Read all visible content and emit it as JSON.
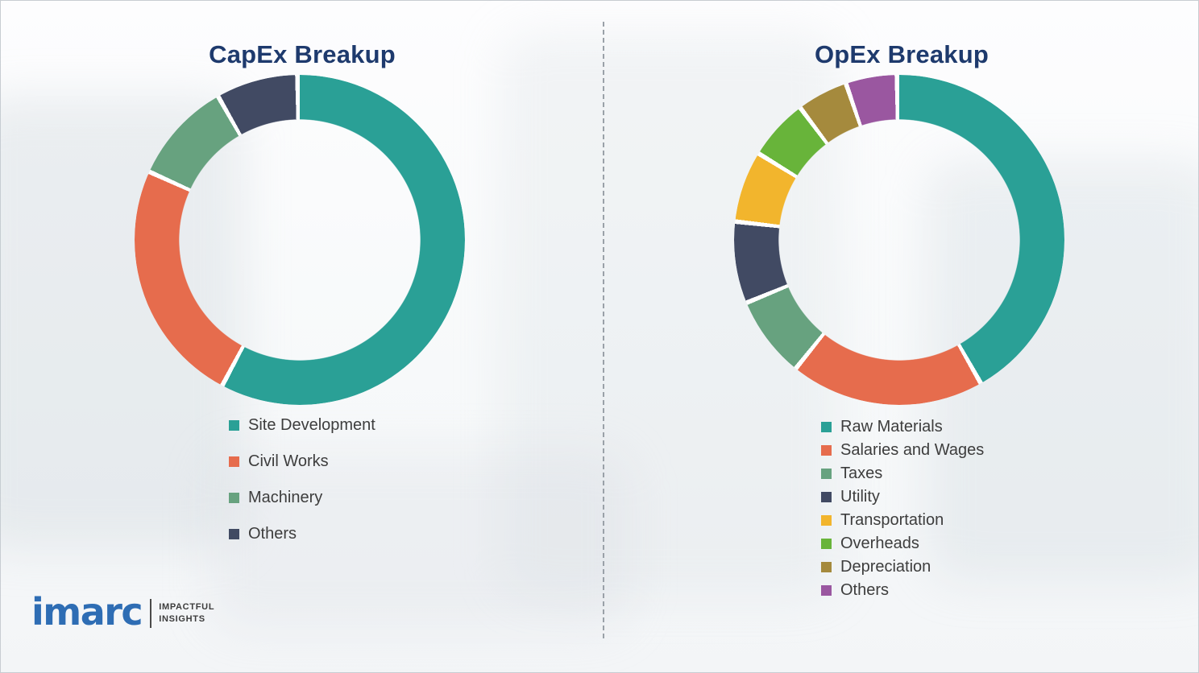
{
  "chart_data": [
    {
      "type": "pie",
      "variant": "donut",
      "title": "CapEx Breakup",
      "legend_position": "bottom-left",
      "labels": [
        "Site Development",
        "Civil Works",
        "Machinery",
        "Others"
      ],
      "values": [
        58,
        24,
        10,
        8
      ],
      "colors": [
        "#2aa096",
        "#e66c4d",
        "#67a27f",
        "#414a63"
      ]
    },
    {
      "type": "pie",
      "variant": "donut",
      "title": "OpEx Breakup",
      "legend_position": "bottom-left",
      "labels": [
        "Raw Materials",
        "Salaries and Wages",
        "Taxes",
        "Utility",
        "Transportation",
        "Overheads",
        "Depreciation",
        "Others"
      ],
      "values": [
        42,
        19,
        8,
        8,
        7,
        6,
        5,
        5
      ],
      "colors": [
        "#2aa096",
        "#e66c4d",
        "#67a27f",
        "#414a63",
        "#f2b52d",
        "#68b43a",
        "#a58a3d",
        "#9a57a0"
      ]
    }
  ],
  "logo": {
    "brand": "imarc",
    "tagline_line1": "IMPACTFUL",
    "tagline_line2": "INSIGHTS"
  },
  "style": {
    "title_color": "#1e3a6d",
    "legend_text_color": "#3d3d3d",
    "divider_style": "dashed"
  }
}
